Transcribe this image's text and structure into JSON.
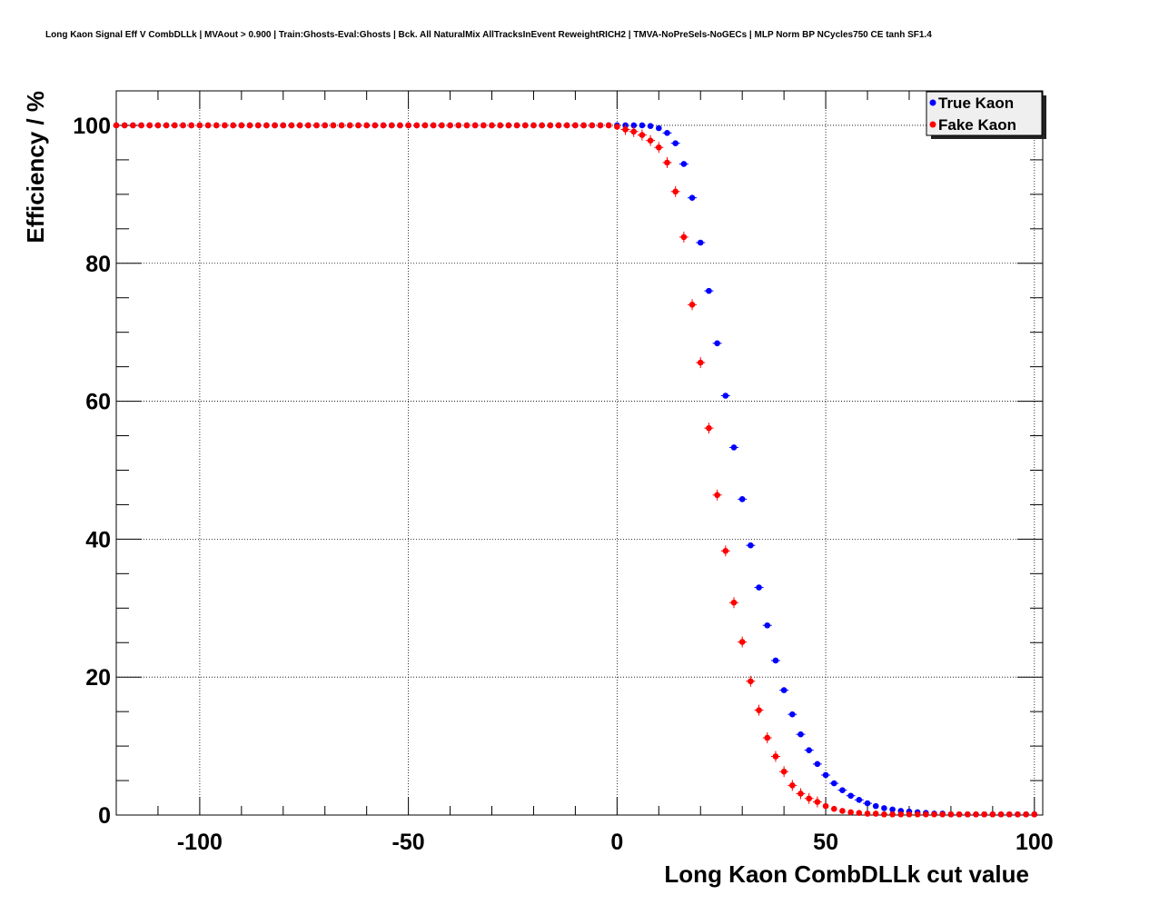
{
  "chart_data": {
    "type": "scatter",
    "title": "Long Kaon Signal Eff V CombDLLk | MVAout > 0.900 | Train:Ghosts-Eval:Ghosts | Bck. All NaturalMix AllTracksInEvent ReweightRICH2 | TMVA-NoPreSels-NoGECs | MLP Norm BP NCycles750 CE tanh SF1.4",
    "xlabel": "Long Kaon CombDLLk cut value",
    "ylabel": "Efficiency / %",
    "xlim": [
      -120,
      102
    ],
    "ylim": [
      0,
      105
    ],
    "xticks": [
      -100,
      -50,
      0,
      50,
      100
    ],
    "xtick_labels": [
      "-100",
      "-50",
      "0",
      "50",
      "100"
    ],
    "yticks": [
      0,
      20,
      40,
      60,
      80,
      100
    ],
    "ytick_labels": [
      "0",
      "20",
      "40",
      "60",
      "80",
      "100"
    ],
    "grid": true,
    "legend_position": "top-right",
    "series": [
      {
        "name": "True Kaon",
        "color": "#0000ff",
        "x": [
          -120,
          -118,
          -116,
          -114,
          -112,
          -110,
          -108,
          -106,
          -104,
          -102,
          -100,
          -98,
          -96,
          -94,
          -92,
          -90,
          -88,
          -86,
          -84,
          -82,
          -80,
          -78,
          -76,
          -74,
          -72,
          -70,
          -68,
          -66,
          -64,
          -62,
          -60,
          -58,
          -56,
          -54,
          -52,
          -50,
          -48,
          -46,
          -44,
          -42,
          -40,
          -38,
          -36,
          -34,
          -32,
          -30,
          -28,
          -26,
          -24,
          -22,
          -20,
          -18,
          -16,
          -14,
          -12,
          -10,
          -8,
          -6,
          -4,
          -2,
          0,
          2,
          4,
          6,
          8,
          10,
          12,
          14,
          16,
          18,
          20,
          22,
          24,
          26,
          28,
          30,
          32,
          34,
          36,
          38,
          40,
          42,
          44,
          46,
          48,
          50,
          52,
          54,
          56,
          58,
          60,
          62,
          64,
          66,
          68,
          70,
          72,
          74,
          76,
          78,
          80,
          82,
          84,
          86,
          88,
          90,
          92,
          94,
          96,
          98,
          100
        ],
        "y": [
          100,
          100,
          100,
          100,
          100,
          100,
          100,
          100,
          100,
          100,
          100,
          100,
          100,
          100,
          100,
          100,
          100,
          100,
          100,
          100,
          100,
          100,
          100,
          100,
          100,
          100,
          100,
          100,
          100,
          100,
          100,
          100,
          100,
          100,
          100,
          100,
          100,
          100,
          100,
          100,
          100,
          100,
          100,
          100,
          100,
          100,
          100,
          100,
          100,
          100,
          100,
          100,
          100,
          100,
          100,
          100,
          100,
          100,
          100,
          100,
          100,
          100,
          100,
          100,
          99.9,
          99.6,
          98.9,
          97.4,
          94.4,
          89.5,
          83.0,
          76.0,
          68.4,
          60.8,
          53.3,
          45.8,
          39.1,
          33.0,
          27.5,
          22.4,
          18.1,
          14.6,
          11.7,
          9.4,
          7.4,
          5.8,
          4.6,
          3.6,
          2.8,
          2.2,
          1.7,
          1.3,
          1.0,
          0.8,
          0.6,
          0.5,
          0.4,
          0.3,
          0.2,
          0.2,
          0.1,
          0.1,
          0.1,
          0.1,
          0.1,
          0.1,
          0.1,
          0.1,
          0.1,
          0.1,
          0.1
        ]
      },
      {
        "name": "Fake Kaon",
        "color": "#ff0000",
        "x": [
          -120,
          -118,
          -116,
          -114,
          -112,
          -110,
          -108,
          -106,
          -104,
          -102,
          -100,
          -98,
          -96,
          -94,
          -92,
          -90,
          -88,
          -86,
          -84,
          -82,
          -80,
          -78,
          -76,
          -74,
          -72,
          -70,
          -68,
          -66,
          -64,
          -62,
          -60,
          -58,
          -56,
          -54,
          -52,
          -50,
          -48,
          -46,
          -44,
          -42,
          -40,
          -38,
          -36,
          -34,
          -32,
          -30,
          -28,
          -26,
          -24,
          -22,
          -20,
          -18,
          -16,
          -14,
          -12,
          -10,
          -8,
          -6,
          -4,
          -2,
          0,
          2,
          4,
          6,
          8,
          10,
          12,
          14,
          16,
          18,
          20,
          22,
          24,
          26,
          28,
          30,
          32,
          34,
          36,
          38,
          40,
          42,
          44,
          46,
          48,
          50,
          52,
          54,
          56,
          58,
          60,
          62,
          64,
          66,
          68,
          70,
          72,
          74,
          76,
          78,
          80,
          82,
          84,
          86,
          88,
          90,
          92,
          94,
          96,
          98,
          100
        ],
        "y": [
          100,
          100,
          100,
          100,
          100,
          100,
          100,
          100,
          100,
          100,
          100,
          100,
          100,
          100,
          100,
          100,
          100,
          100,
          100,
          100,
          100,
          100,
          100,
          100,
          100,
          100,
          100,
          100,
          100,
          100,
          100,
          100,
          100,
          100,
          100,
          100,
          100,
          100,
          100,
          100,
          100,
          100,
          100,
          100,
          100,
          100,
          100,
          100,
          100,
          100,
          100,
          100,
          100,
          100,
          100,
          100,
          100,
          100,
          100,
          100,
          99.8,
          99.4,
          99.1,
          98.6,
          97.8,
          96.8,
          94.6,
          90.4,
          83.8,
          74.0,
          65.6,
          56.1,
          46.4,
          38.3,
          30.8,
          25.1,
          19.4,
          15.2,
          11.2,
          8.5,
          6.3,
          4.3,
          3.1,
          2.4,
          1.9,
          1.3,
          0.9,
          0.6,
          0.4,
          0.3,
          0.2,
          0.2,
          0.1,
          0.1,
          0.1,
          0.1,
          0.1,
          0.1,
          0.1,
          0.1,
          0.1,
          0.1,
          0.1,
          0.1,
          0.1,
          0.1,
          0.1,
          0.1,
          0.1,
          0.1,
          0.1
        ]
      }
    ]
  }
}
